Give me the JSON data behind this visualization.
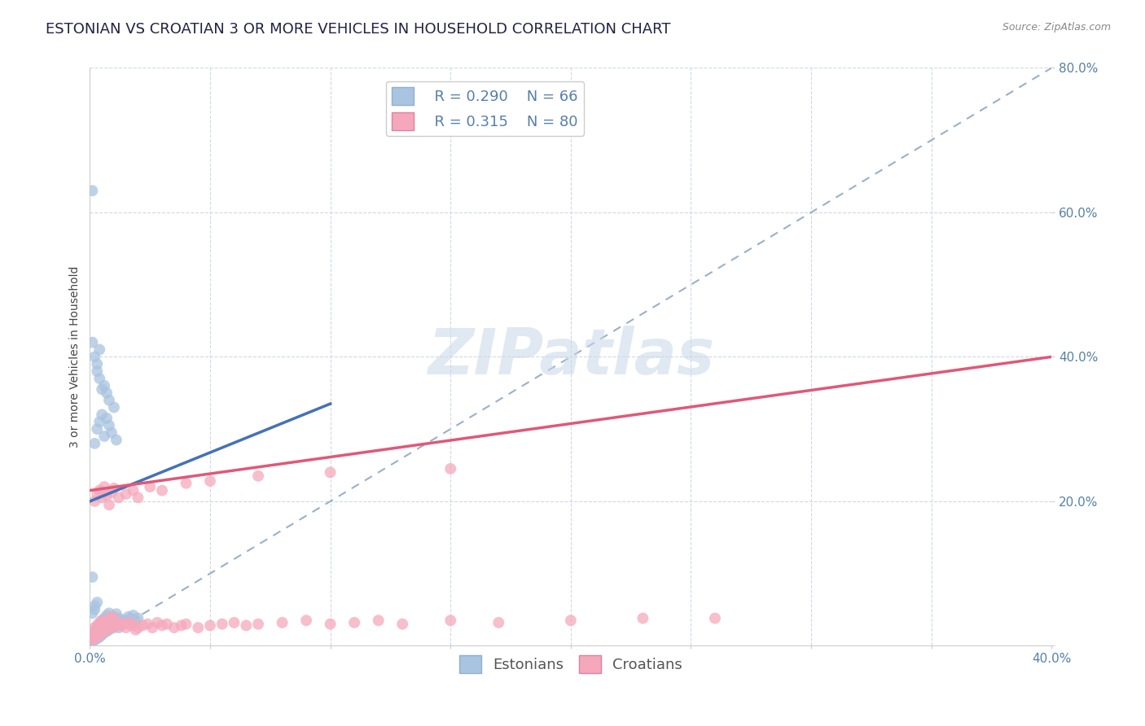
{
  "title": "ESTONIAN VS CROATIAN 3 OR MORE VEHICLES IN HOUSEHOLD CORRELATION CHART",
  "source": "Source: ZipAtlas.com",
  "ylabel": "3 or more Vehicles in Household",
  "xlim": [
    0.0,
    0.4
  ],
  "ylim": [
    0.0,
    0.8
  ],
  "xticks": [
    0.0,
    0.05,
    0.1,
    0.15,
    0.2,
    0.25,
    0.3,
    0.35,
    0.4
  ],
  "yticks": [
    0.0,
    0.2,
    0.4,
    0.6,
    0.8
  ],
  "estonian_color": "#a8c4e0",
  "croatian_color": "#f5a8bc",
  "estonian_line_color": "#4472b8",
  "croatian_line_color": "#e05878",
  "ref_line_color": "#9ab0cc",
  "legend_R_estonian": "R = 0.290",
  "legend_N_estonian": "N = 66",
  "legend_R_croatian": "R = 0.315",
  "legend_N_croatian": "N = 80",
  "title_fontsize": 13,
  "axis_label_fontsize": 10,
  "tick_fontsize": 11,
  "legend_fontsize": 13,
  "watermark": "ZIPatlas",
  "watermark_color": "#c8d8e8",
  "estonian_x": [
    0.001,
    0.001,
    0.002,
    0.002,
    0.002,
    0.002,
    0.003,
    0.003,
    0.003,
    0.004,
    0.004,
    0.004,
    0.005,
    0.005,
    0.005,
    0.006,
    0.006,
    0.006,
    0.007,
    0.007,
    0.007,
    0.008,
    0.008,
    0.008,
    0.009,
    0.009,
    0.01,
    0.01,
    0.011,
    0.011,
    0.012,
    0.012,
    0.013,
    0.014,
    0.015,
    0.016,
    0.017,
    0.018,
    0.019,
    0.02,
    0.002,
    0.003,
    0.004,
    0.005,
    0.006,
    0.007,
    0.008,
    0.009,
    0.01,
    0.011,
    0.003,
    0.004,
    0.005,
    0.006,
    0.007,
    0.008,
    0.001,
    0.002,
    0.003,
    0.004,
    0.002,
    0.003,
    0.001,
    0.001,
    0.002,
    0.001
  ],
  "estonian_y": [
    0.005,
    0.01,
    0.008,
    0.012,
    0.015,
    0.02,
    0.01,
    0.018,
    0.025,
    0.012,
    0.02,
    0.03,
    0.015,
    0.022,
    0.035,
    0.018,
    0.025,
    0.038,
    0.02,
    0.03,
    0.042,
    0.022,
    0.035,
    0.045,
    0.025,
    0.038,
    0.028,
    0.04,
    0.03,
    0.044,
    0.025,
    0.038,
    0.032,
    0.036,
    0.033,
    0.04,
    0.038,
    0.042,
    0.035,
    0.038,
    0.28,
    0.3,
    0.31,
    0.32,
    0.29,
    0.315,
    0.305,
    0.295,
    0.33,
    0.285,
    0.38,
    0.37,
    0.355,
    0.36,
    0.35,
    0.34,
    0.42,
    0.4,
    0.39,
    0.41,
    0.05,
    0.06,
    0.63,
    0.045,
    0.055,
    0.095
  ],
  "croatian_x": [
    0.001,
    0.001,
    0.002,
    0.002,
    0.002,
    0.003,
    0.003,
    0.003,
    0.004,
    0.004,
    0.004,
    0.005,
    0.005,
    0.005,
    0.006,
    0.006,
    0.007,
    0.007,
    0.008,
    0.008,
    0.009,
    0.009,
    0.01,
    0.01,
    0.011,
    0.012,
    0.013,
    0.014,
    0.015,
    0.016,
    0.017,
    0.018,
    0.019,
    0.02,
    0.022,
    0.024,
    0.026,
    0.028,
    0.03,
    0.032,
    0.035,
    0.038,
    0.04,
    0.045,
    0.05,
    0.055,
    0.06,
    0.065,
    0.07,
    0.08,
    0.09,
    0.1,
    0.11,
    0.12,
    0.13,
    0.15,
    0.17,
    0.2,
    0.23,
    0.26,
    0.002,
    0.003,
    0.004,
    0.005,
    0.006,
    0.007,
    0.008,
    0.009,
    0.01,
    0.012,
    0.015,
    0.018,
    0.02,
    0.025,
    0.03,
    0.04,
    0.05,
    0.07,
    0.1,
    0.15
  ],
  "croatian_y": [
    0.008,
    0.015,
    0.01,
    0.018,
    0.025,
    0.012,
    0.02,
    0.028,
    0.015,
    0.022,
    0.032,
    0.018,
    0.025,
    0.035,
    0.02,
    0.03,
    0.022,
    0.035,
    0.025,
    0.038,
    0.028,
    0.04,
    0.025,
    0.038,
    0.03,
    0.032,
    0.028,
    0.03,
    0.025,
    0.032,
    0.028,
    0.03,
    0.022,
    0.025,
    0.028,
    0.03,
    0.025,
    0.032,
    0.028,
    0.03,
    0.025,
    0.028,
    0.03,
    0.025,
    0.028,
    0.03,
    0.032,
    0.028,
    0.03,
    0.032,
    0.035,
    0.03,
    0.032,
    0.035,
    0.03,
    0.035,
    0.032,
    0.035,
    0.038,
    0.038,
    0.2,
    0.21,
    0.215,
    0.205,
    0.22,
    0.208,
    0.195,
    0.212,
    0.218,
    0.205,
    0.21,
    0.215,
    0.205,
    0.22,
    0.215,
    0.225,
    0.228,
    0.235,
    0.24,
    0.245
  ]
}
